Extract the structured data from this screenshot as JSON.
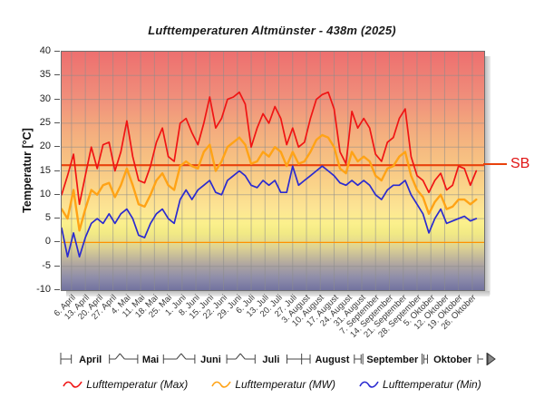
{
  "title": "Lufttemperaturen Altmünster - 438m (2025)",
  "y_axis": {
    "label": "Temperatur [°C]",
    "ticks": [
      40,
      35,
      30,
      25,
      20,
      15,
      10,
      5,
      0,
      -5,
      -10
    ]
  },
  "x_axis": {
    "week_labels": [
      "6. April",
      "13. April",
      "20. April",
      "27. April",
      "4. Mai",
      "11. Mai",
      "18. Mai",
      "25. Mai",
      "1. Juni",
      "8. Juni",
      "15. Juni",
      "22. Juni",
      "29. Juni",
      "6. Juli",
      "13. Juli",
      "20. Juli",
      "27. Juli",
      "3. August",
      "10. August",
      "17. August",
      "24. August",
      "31. August",
      "7. September",
      "14. September",
      "21. September",
      "28. September",
      "5. Oktober",
      "12. Oktober",
      "19. Oktober",
      "26. Oktober"
    ],
    "first_label_day": 5,
    "label_interval_days": 7,
    "total_days": 214,
    "months": [
      {
        "label": "April",
        "days": 30
      },
      {
        "label": "Mai",
        "days": 31
      },
      {
        "label": "Juni",
        "days": 30
      },
      {
        "label": "Juli",
        "days": 31
      },
      {
        "label": "August",
        "days": 31
      },
      {
        "label": "September",
        "days": 30
      },
      {
        "label": "Oktober",
        "days": 31
      }
    ],
    "scroll_arrow_icon": "scroll-right-arrow"
  },
  "threshold": {
    "label": "SB",
    "value": 16.2,
    "line_color": "#e8420c",
    "label_color": "#e01414"
  },
  "colors": {
    "zero_line": "#ff9100",
    "grid": "#8c8c8c"
  },
  "legend": {
    "items": [
      {
        "label": "Lufttemperatur (Max)",
        "color": "#f01414",
        "icon": "wave-line-icon"
      },
      {
        "label": "Lufttemperatur (MW)",
        "color": "#ffa316",
        "icon": "wave-line-icon"
      },
      {
        "label": "Lufttemperatur (Min)",
        "color": "#2b2bd0",
        "icon": "wave-line-icon"
      }
    ]
  },
  "chart_data": {
    "type": "line",
    "title": "Lufttemperaturen Altmünster - 438m (2025)",
    "xlabel": "",
    "ylabel": "Temperatur [°C]",
    "ylim": [
      -10,
      40
    ],
    "x_range_days": [
      0,
      214
    ],
    "x_start_date": "1. April 2025",
    "x_end_date": "31. Oktober 2025",
    "grid": true,
    "legend_position": "bottom",
    "background": "thermal-gradient red(warm,top) to yellow(0°C) to slate-blue(cold,bottom)",
    "threshold_line": {
      "name": "SB",
      "value": 16.2
    },
    "zero_line": {
      "value": 0
    },
    "x_days": [
      0,
      3,
      6,
      9,
      12,
      15,
      18,
      21,
      24,
      27,
      30,
      33,
      36,
      39,
      42,
      45,
      48,
      51,
      54,
      57,
      60,
      63,
      66,
      69,
      72,
      75,
      78,
      81,
      84,
      87,
      90,
      93,
      96,
      99,
      102,
      105,
      108,
      111,
      114,
      117,
      120,
      123,
      126,
      129,
      132,
      135,
      138,
      141,
      144,
      147,
      150,
      153,
      156,
      159,
      162,
      165,
      168,
      171,
      174,
      177,
      180,
      183,
      186,
      189,
      192,
      195,
      198,
      201,
      204,
      207,
      210
    ],
    "series": [
      {
        "name": "Lufttemperatur (Max)",
        "color": "#f01414",
        "values": [
          10,
          14,
          18.5,
          8,
          14,
          20,
          15.5,
          20.5,
          21,
          15,
          19,
          25.5,
          18,
          13,
          12.5,
          16,
          21,
          24,
          18,
          17,
          25,
          26,
          23,
          20.5,
          25,
          30.5,
          24,
          26,
          30,
          30.5,
          31.5,
          29,
          20,
          24,
          27,
          25,
          28.5,
          26,
          20.5,
          24,
          20,
          21,
          26,
          30,
          31,
          31.5,
          28,
          19,
          16.5,
          27.5,
          24,
          26,
          24,
          18.5,
          17,
          21,
          22,
          26,
          28,
          18,
          14,
          13,
          10.5,
          13,
          14.5,
          11,
          12,
          16,
          15.5,
          12,
          15
        ]
      },
      {
        "name": "Lufttemperatur (MW)",
        "color": "#ffa316",
        "values": [
          7,
          5,
          11,
          2.5,
          7,
          11,
          10,
          12,
          12.5,
          9.5,
          12,
          15.5,
          12,
          8,
          7.5,
          10,
          13,
          14.5,
          12,
          11,
          16,
          17,
          16,
          15.5,
          19,
          20.5,
          15,
          17,
          20,
          21,
          22,
          20.5,
          16.5,
          17,
          19,
          18,
          20,
          19,
          16,
          19,
          16.5,
          17,
          19,
          21.5,
          22.5,
          22,
          20,
          15.5,
          14.5,
          19,
          17,
          18,
          17,
          14,
          13,
          15.5,
          16,
          18,
          19,
          14,
          11,
          9.5,
          6,
          8.5,
          10,
          7,
          7.5,
          9,
          9,
          8,
          9
        ]
      },
      {
        "name": "Lufttemperatur (Min)",
        "color": "#2b2bd0",
        "values": [
          3,
          -3,
          2,
          -3,
          1,
          4,
          5,
          4,
          6,
          4,
          6,
          7,
          5,
          1.5,
          1,
          4,
          6,
          7,
          5,
          4,
          9,
          11,
          9,
          11,
          12,
          13,
          10.5,
          10,
          13,
          14,
          15,
          14,
          12,
          11.5,
          13,
          12,
          13,
          10.5,
          10.5,
          16,
          12,
          13,
          14,
          15,
          16,
          15,
          14,
          12.5,
          12,
          13,
          12,
          13,
          12,
          10,
          9,
          11,
          12,
          12,
          13,
          10,
          8,
          6,
          2,
          5,
          7,
          4,
          4.5,
          5,
          5.5,
          4.5,
          5
        ]
      }
    ]
  }
}
